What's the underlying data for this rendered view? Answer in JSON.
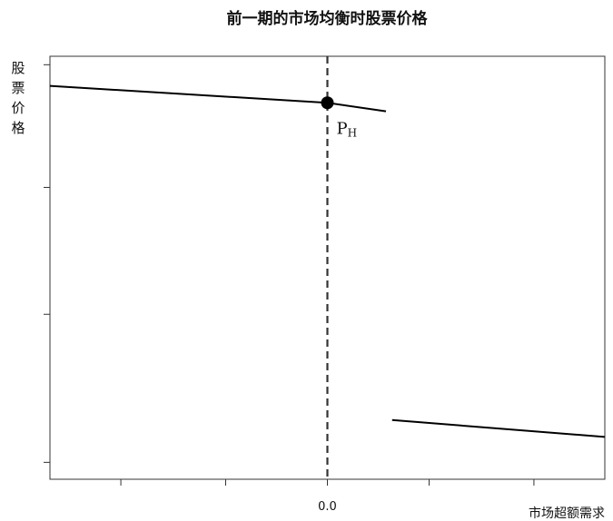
{
  "chart_data": {
    "type": "line",
    "title": "前一期的市场均衡时股票价格",
    "xlabel": "市场超额需求",
    "ylabel": [
      "股",
      "票",
      "价",
      "格"
    ],
    "xlim": [
      -9,
      9
    ],
    "ylim": [
      0,
      10
    ],
    "x_ticks": [
      -6.7,
      -3.3,
      0,
      3.3,
      6.7
    ],
    "x_tick_labels": [
      "",
      "",
      "0.0",
      "",
      ""
    ],
    "y_ticks": [
      0.4,
      3.9,
      6.9,
      9.8
    ],
    "vline_x": 0,
    "series": [
      {
        "points": [
          [
            -9,
            9.3
          ],
          [
            0,
            8.9
          ],
          [
            1.9,
            8.7
          ]
        ]
      },
      {
        "points": [
          [
            2.1,
            1.4
          ],
          [
            9,
            1.0
          ]
        ]
      }
    ],
    "highlight_point": {
      "x": 0,
      "y": 8.9,
      "label_main": "P",
      "label_sub": "H"
    },
    "grid": false
  }
}
